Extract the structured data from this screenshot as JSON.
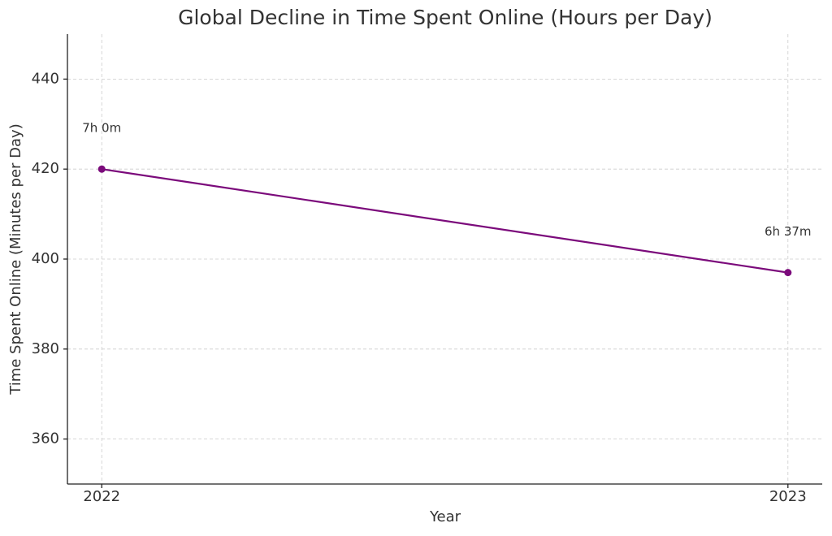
{
  "chart_data": {
    "type": "line",
    "title": "Global Decline in Time Spent Online (Hours per Day)",
    "x_label": "Year",
    "y_label": "Time Spent Online (Minutes per Day)",
    "x": [
      2022,
      2023
    ],
    "values": [
      420,
      397
    ],
    "value_labels": [
      "7h 0m",
      "6h 37m"
    ],
    "color": "#7b0a7b",
    "xlim": [
      2021.95,
      2023.05
    ],
    "xticks": [
      2022,
      2023
    ],
    "ylim": [
      350,
      450
    ],
    "yticks": [
      360,
      380,
      400,
      420,
      440
    ],
    "grid": true
  }
}
